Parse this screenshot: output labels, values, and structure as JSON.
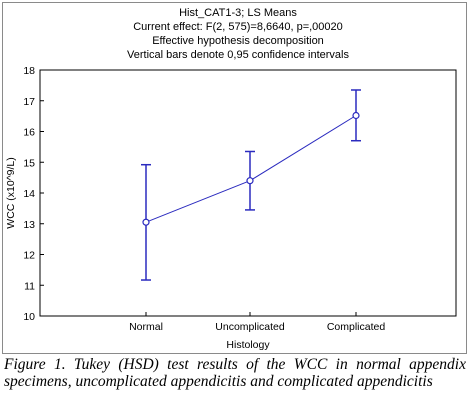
{
  "chart_data": {
    "type": "line",
    "title_lines": [
      "Hist_CAT1-3; LS Means",
      "Current effect: F(2, 575)=8,6640, p=,00020",
      "Effective hypothesis decomposition",
      "Vertical bars denote 0,95 confidence intervals"
    ],
    "xlabel": "Histology",
    "ylabel": "WCC (x10^9/L)",
    "categories": [
      "Normal",
      "Uncomplicated",
      "Complicated"
    ],
    "series": [
      {
        "values": [
          13.05,
          14.4,
          16.52
        ],
        "ci_lower": [
          11.17,
          13.45,
          15.7
        ],
        "ci_upper": [
          14.92,
          15.35,
          17.35
        ]
      }
    ],
    "ylim": [
      10,
      18
    ],
    "yticks": [
      10,
      11,
      12,
      13,
      14,
      15,
      16,
      17,
      18
    ],
    "grid": false,
    "line_color": "#2b2bbf"
  },
  "caption": "Figure 1. Tukey (HSD) test results of the WCC in normal appendix specimens, uncomplicated appendicitis and complicated appendicitis"
}
